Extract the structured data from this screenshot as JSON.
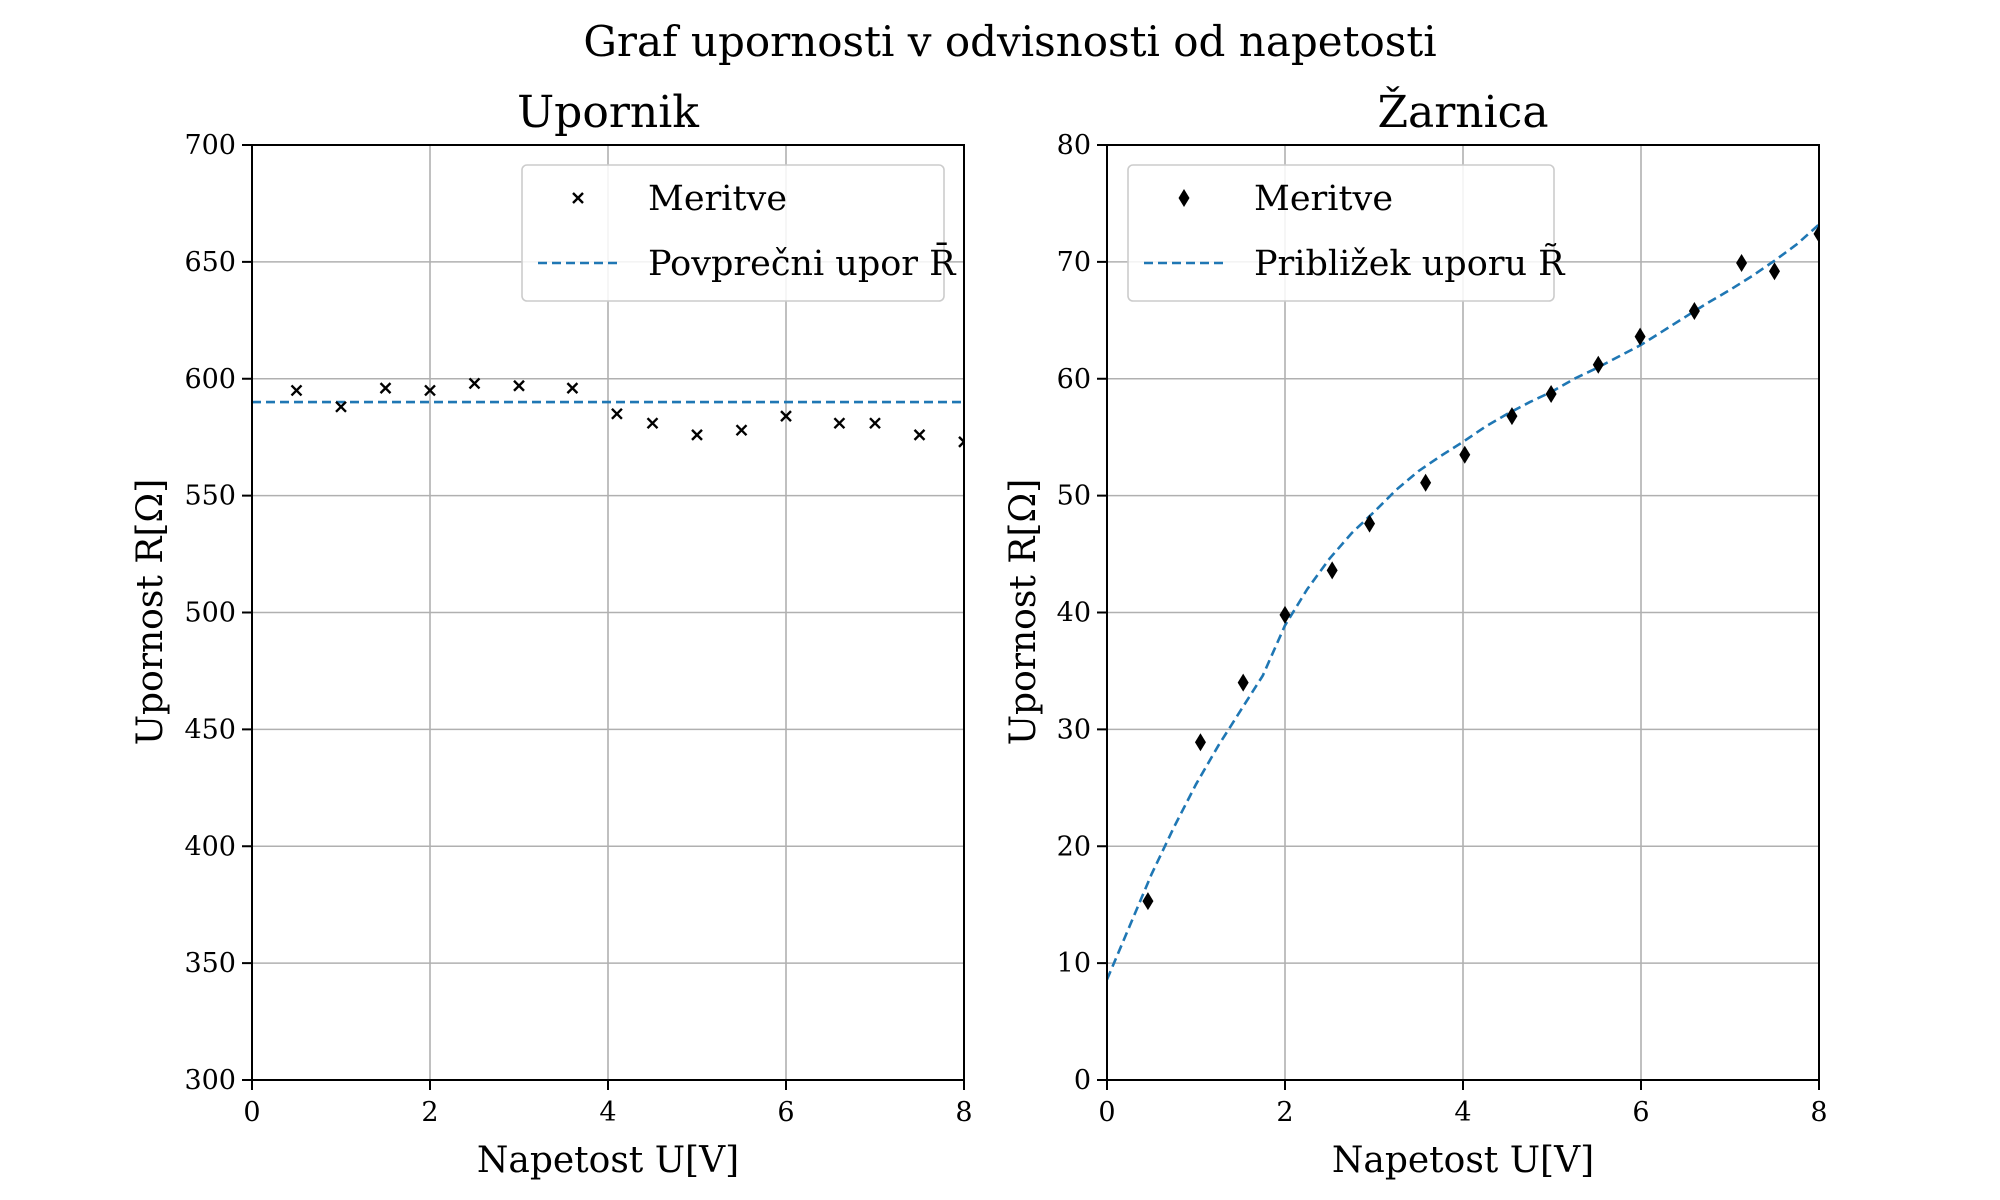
{
  "figure_title": "Graf upornosti v odvisnosti od napetosti",
  "colors": {
    "measurement": "#000000",
    "fit": "#1f77b4",
    "grid": "#b0b0b0"
  },
  "chart_data": [
    {
      "type": "scatter",
      "title": "Upornik",
      "xlabel": "Napetost U[V]",
      "ylabel": "Upornost R[Ω]",
      "xlim": [
        0,
        8
      ],
      "ylim": [
        300,
        700
      ],
      "xticks": [
        0,
        2,
        4,
        6,
        8
      ],
      "yticks": [
        300,
        350,
        400,
        450,
        500,
        550,
        600,
        650,
        700
      ],
      "grid": true,
      "legend_position": "top-right",
      "series": [
        {
          "name": "Meritve",
          "kind": "scatter",
          "marker": "x",
          "x": [
            0.5,
            1.0,
            1.5,
            2.0,
            2.5,
            3.0,
            3.6,
            4.1,
            4.5,
            5.0,
            5.5,
            6.0,
            6.6,
            7.0,
            7.5,
            8.0
          ],
          "y": [
            595,
            588,
            596,
            595,
            598,
            597,
            596,
            585,
            581,
            576,
            578,
            584,
            581,
            581,
            576,
            573
          ]
        },
        {
          "name": "Povprečni upor R̄",
          "kind": "line",
          "style": "dashed",
          "x": [
            0,
            8
          ],
          "y": [
            590,
            590
          ]
        }
      ]
    },
    {
      "type": "scatter",
      "title": "Žarnica",
      "xlabel": "Napetost U[V]",
      "ylabel": "Upornost R[Ω]",
      "xlim": [
        0,
        8
      ],
      "ylim": [
        0,
        80
      ],
      "xticks": [
        0,
        2,
        4,
        6,
        8
      ],
      "yticks": [
        0,
        10,
        20,
        30,
        40,
        50,
        60,
        70,
        80
      ],
      "grid": true,
      "legend_position": "top-left",
      "series": [
        {
          "name": "Meritve",
          "kind": "scatter",
          "marker": "diamond",
          "x": [
            0.46,
            1.05,
            1.53,
            2.0,
            2.53,
            2.95,
            3.58,
            4.02,
            4.55,
            4.99,
            5.52,
            5.99,
            6.6,
            7.13,
            7.5,
            8.0
          ],
          "y": [
            15.3,
            28.9,
            34.0,
            39.8,
            43.6,
            47.6,
            51.1,
            53.5,
            56.8,
            58.7,
            61.2,
            63.6,
            65.8,
            69.9,
            69.2,
            72.4
          ]
        },
        {
          "name": "Približek uporu R̃",
          "kind": "line",
          "style": "dashed",
          "x": [
            0,
            0.25,
            0.5,
            0.75,
            1.0,
            1.25,
            1.5,
            1.75,
            2.0,
            2.25,
            2.5,
            2.75,
            3.0,
            3.25,
            3.5,
            3.75,
            4.0,
            4.25,
            4.5,
            4.75,
            5.0,
            5.25,
            5.5,
            5.75,
            6.0,
            6.25,
            6.5,
            6.75,
            7.0,
            7.25,
            7.5,
            7.75,
            8.0
          ],
          "y": [
            8.6,
            13.1,
            17.6,
            21.6,
            25.3,
            28.6,
            31.6,
            34.6,
            38.9,
            42.0,
            44.6,
            46.8,
            48.6,
            50.5,
            52.1,
            53.4,
            54.6,
            55.9,
            57.0,
            58.0,
            58.9,
            60.0,
            60.9,
            61.9,
            62.9,
            64.1,
            65.3,
            66.5,
            67.6,
            68.8,
            70.1,
            71.5,
            73.2
          ]
        }
      ]
    }
  ]
}
